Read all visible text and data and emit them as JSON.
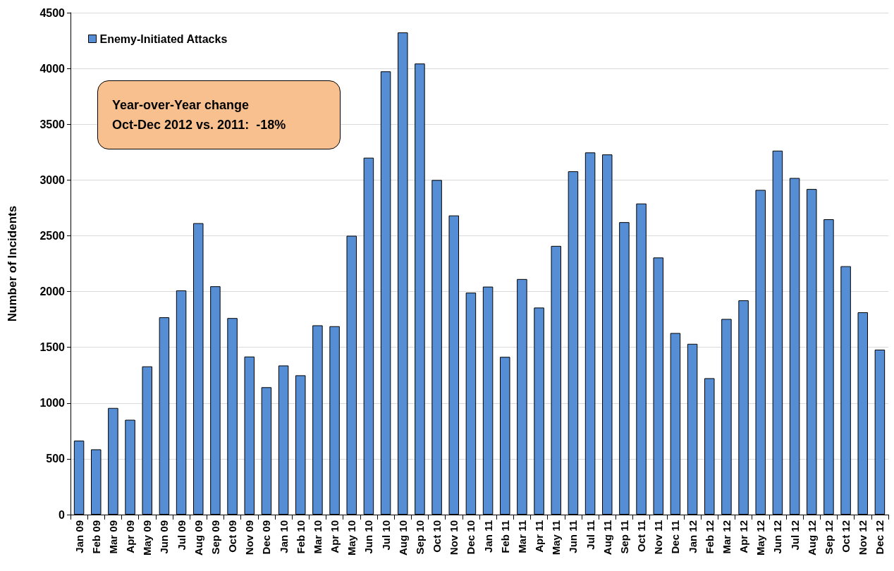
{
  "chart_data": {
    "type": "bar",
    "ylabel": "Number of Incidents",
    "annotations": [
      "Year-over-Year change\nOct-Dec 2012 vs. 2011:  -18%"
    ],
    "categories": [
      "Jan 09",
      "Feb 09",
      "Mar 09",
      "Apr 09",
      "May 09",
      "Jun 09",
      "Jul 09",
      "Aug 09",
      "Sep 09",
      "Oct 09",
      "Nov 09",
      "Dec 09",
      "Jan 10",
      "Feb 10",
      "Mar 10",
      "Apr 10",
      "May 10",
      "Jun 10",
      "Jul 10",
      "Aug 10",
      "Sep 10",
      "Oct 10",
      "Nov 10",
      "Dec 10",
      "Jan 11",
      "Feb 11",
      "Mar 11",
      "Apr 11",
      "May 11",
      "Jun 11",
      "Jul 11",
      "Aug 11",
      "Sep 11",
      "Oct 11",
      "Nov 11",
      "Dec 11",
      "Jan 12",
      "Feb 12",
      "Mar 12",
      "Apr 12",
      "May 12",
      "Jun 12",
      "Jul 12",
      "Aug 12",
      "Sep 12",
      "Oct 12",
      "Nov 12",
      "Dec 12"
    ],
    "series": [
      {
        "name": "Enemy-Initiated Attacks",
        "color": "#558ed5",
        "values": [
          663,
          585,
          956,
          850,
          1329,
          1769,
          2010,
          2613,
          2047,
          1762,
          1417,
          1142,
          1337,
          1249,
          1697,
          1689,
          2500,
          3200,
          3974,
          4323,
          4044,
          3000,
          2682,
          1990,
          2044,
          1414,
          2112,
          1856,
          2409,
          3078,
          3247,
          3229,
          2622,
          2789,
          2305,
          1628,
          1531,
          1223,
          1754,
          1921,
          2911,
          3263,
          3018,
          2919,
          2648,
          2227,
          1814,
          1479
        ]
      }
    ],
    "ylim": [
      0,
      4500
    ],
    "yticks": [
      0,
      500,
      1000,
      1500,
      2000,
      2500,
      3000,
      3500,
      4000,
      4500
    ],
    "grid": "y",
    "legend": "top left"
  }
}
